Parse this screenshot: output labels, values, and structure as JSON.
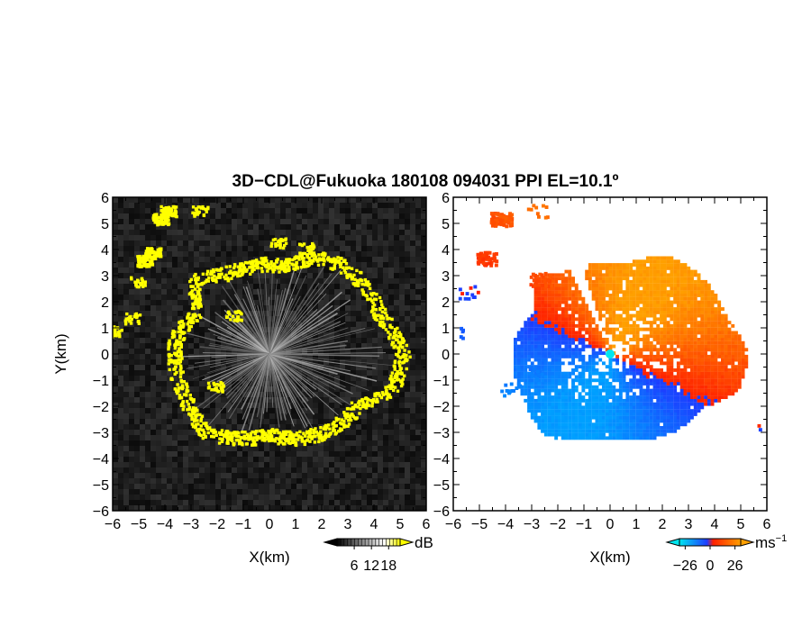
{
  "title": "3D−CDL@Fukuoka 180108 094031 PPI EL=10.1º",
  "ylabel": "Y(km)",
  "chart_data": [
    {
      "type": "heatmap",
      "panel": "left",
      "xlabel": "X(km)",
      "ylabel": "Y(km)",
      "xlim": [
        -6,
        6
      ],
      "ylim": [
        -6,
        6
      ],
      "ticks": [
        -6,
        -5,
        -4,
        -3,
        -2,
        -1,
        0,
        1,
        2,
        3,
        4,
        5,
        6
      ],
      "tick_labels": [
        "−6",
        "−5",
        "−4",
        "−3",
        "−2",
        "−1",
        "0",
        "1",
        "2",
        "3",
        "4",
        "5",
        "6"
      ],
      "colorbar": {
        "unit": "dB",
        "ticks": [
          6,
          12,
          18
        ],
        "tick_labels": [
          "6",
          "12",
          "18"
        ],
        "range": [
          0,
          22
        ],
        "colors": [
          "#000000",
          "#ffffff",
          "#ffff00"
        ]
      },
      "background_color": "#1a1a1a",
      "signal_color": "#ffff00"
    },
    {
      "type": "heatmap",
      "panel": "right",
      "xlabel": "X(km)",
      "xlim": [
        -6,
        6
      ],
      "ylim": [
        -6,
        6
      ],
      "ticks": [
        -6,
        -5,
        -4,
        -3,
        -2,
        -1,
        0,
        1,
        2,
        3,
        4,
        5,
        6
      ],
      "tick_labels": [
        "−6",
        "−5",
        "−4",
        "−3",
        "−2",
        "−1",
        "0",
        "1",
        "2",
        "3",
        "4",
        "5",
        "6"
      ],
      "colorbar": {
        "unit": "ms",
        "unit_exp": "−1",
        "ticks": [
          -26,
          0,
          26
        ],
        "tick_labels": [
          "−26",
          "0",
          "26"
        ],
        "range": [
          -32,
          32
        ],
        "colors": [
          "#00e5ee",
          "#1e3cff",
          "#ff2000",
          "#ffa000"
        ]
      },
      "radar_site": {
        "x": 0,
        "y": 0,
        "color": "#00e5ee"
      }
    }
  ]
}
